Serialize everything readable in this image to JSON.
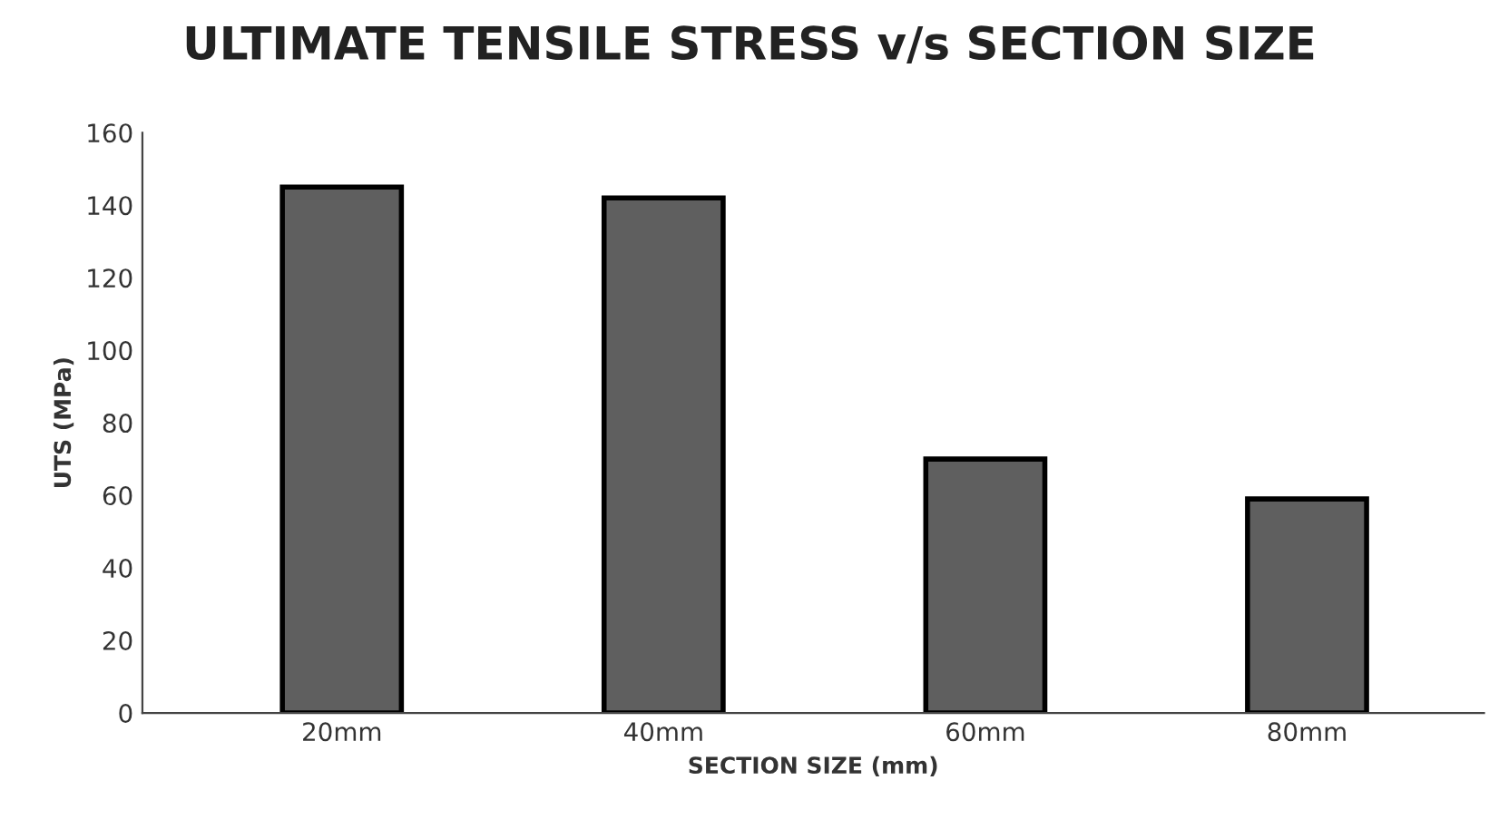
{
  "chart_data": {
    "type": "bar",
    "title": "ULTIMATE TENSILE STRESS v/s SECTION SIZE",
    "xlabel": "SECTION SIZE (mm)",
    "ylabel": "UTS (MPa)",
    "categories": [
      "20mm",
      "40mm",
      "60mm",
      "80mm"
    ],
    "values": [
      145,
      142,
      70,
      59
    ],
    "color": "#5f5f5f",
    "ylim": [
      0,
      160
    ],
    "yticks": [
      0,
      20,
      40,
      60,
      80,
      100,
      120,
      140,
      160
    ],
    "grid": false,
    "legend": false
  }
}
